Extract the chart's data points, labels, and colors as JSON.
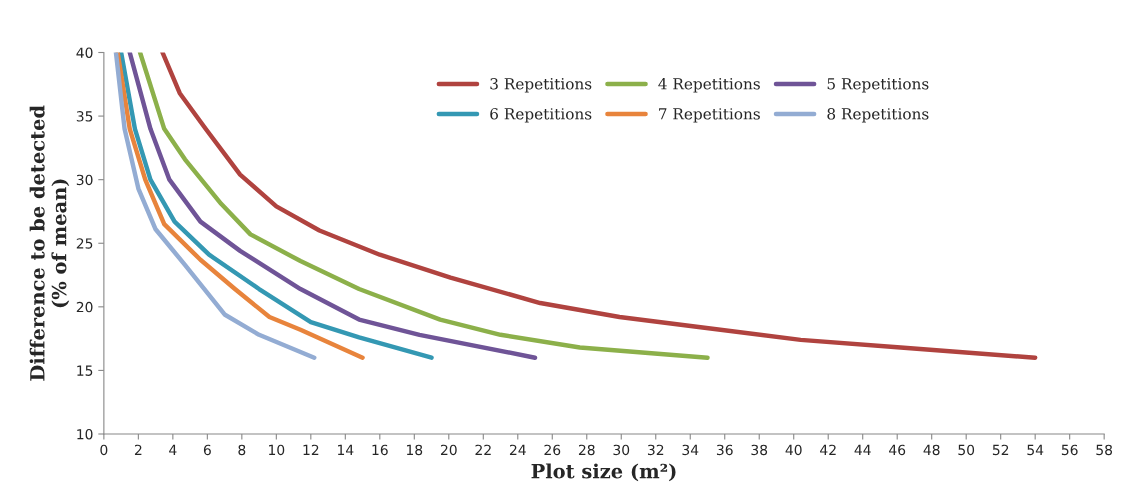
{
  "chart_data": {
    "type": "line",
    "xlabel": "Plot size (m²)",
    "ylabel": "Difference to be detected\n(% of mean)",
    "xlim": [
      0,
      58
    ],
    "xticks": [
      0,
      2,
      4,
      6,
      8,
      10,
      12,
      14,
      16,
      18,
      20,
      22,
      24,
      26,
      28,
      30,
      32,
      34,
      36,
      38,
      40,
      42,
      44,
      46,
      48,
      50,
      52,
      54,
      56,
      58
    ],
    "ylim": [
      10,
      40
    ],
    "yticks": [
      10,
      15,
      20,
      25,
      30,
      35,
      40
    ],
    "grid": false,
    "legend": "top",
    "marker": "none",
    "line_style": "solid",
    "series": [
      {
        "name": "3 Repetitions",
        "color": "#b0433f",
        "x": [
          3.4,
          4.4,
          5.9,
          7.9,
          10,
          12.5,
          16,
          20.1,
          25.3,
          29.9,
          34.6,
          40.4,
          46.2,
          54
        ],
        "values": [
          40,
          36.8,
          34,
          30.4,
          27.9,
          26,
          24.1,
          22.3,
          20.3,
          19.2,
          18.4,
          17.4,
          16.8,
          16
        ]
      },
      {
        "name": "4 Repetitions",
        "color": "#8cb04a",
        "x": [
          2.1,
          3.5,
          4.7,
          6.8,
          8.5,
          11.4,
          14.8,
          19.5,
          23,
          27.6,
          35
        ],
        "values": [
          40,
          34,
          31.6,
          28.1,
          25.7,
          23.6,
          21.4,
          19,
          17.8,
          16.8,
          16
        ]
      },
      {
        "name": "5 Repetitions",
        "color": "#6f5497",
        "x": [
          1.5,
          2.7,
          3.8,
          5.6,
          7.9,
          11.4,
          14.8,
          18.3,
          25
        ],
        "values": [
          40,
          34,
          30,
          26.7,
          24.4,
          21.4,
          19,
          17.8,
          16
        ]
      },
      {
        "name": "6 Repetitions",
        "color": "#3498b3",
        "x": [
          1,
          1.8,
          2.7,
          4.1,
          6.1,
          9,
          12,
          14.8,
          19
        ],
        "values": [
          40,
          34,
          30,
          26.7,
          24.1,
          21.4,
          18.8,
          17.6,
          16
        ]
      },
      {
        "name": "7 Repetitions",
        "color": "#e8843c",
        "x": [
          0.8,
          1.5,
          2.4,
          3.5,
          5.6,
          7.6,
          9.6,
          11.4,
          15
        ],
        "values": [
          40,
          34,
          30,
          26.5,
          23.7,
          21.4,
          19.2,
          18.2,
          16
        ]
      },
      {
        "name": "8 Repetitions",
        "color": "#93acd3",
        "x": [
          0.7,
          1.2,
          2,
          3,
          4.7,
          7,
          9,
          12.2
        ],
        "values": [
          40,
          34,
          29.3,
          26.1,
          23.3,
          19.4,
          17.8,
          16
        ]
      }
    ]
  }
}
